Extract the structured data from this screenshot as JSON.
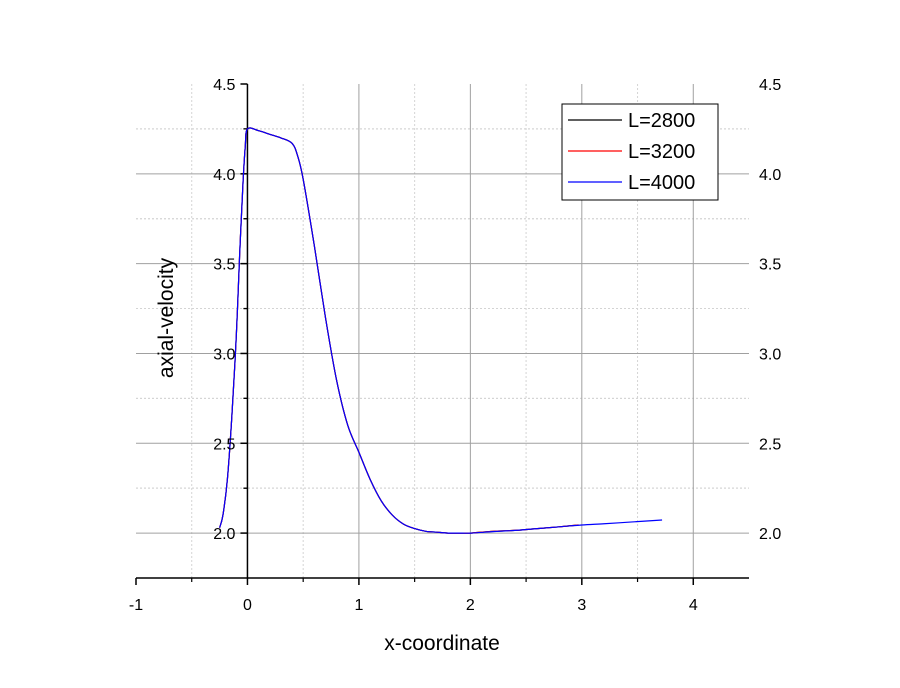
{
  "chart_data": {
    "type": "line",
    "title": "",
    "xlabel": "x-coordinate",
    "ylabel": "axial-velocity",
    "xlim": [
      -1,
      4.5
    ],
    "ylim": [
      1.75,
      4.5
    ],
    "x_ticks": [
      -1,
      0,
      1,
      2,
      3,
      4
    ],
    "x_tick_labels": [
      "-1",
      "0",
      "1",
      "2",
      "3",
      "4"
    ],
    "y_ticks": [
      2.0,
      2.5,
      3.0,
      3.5,
      4.0,
      4.5
    ],
    "y_tick_labels": [
      "2.0",
      "2.5",
      "3.0",
      "3.5",
      "4.0",
      "4.5"
    ],
    "grid": true,
    "legend_position": "top-right",
    "series": [
      {
        "name": "L=2800",
        "color": "#000000",
        "x": [
          -0.25,
          -0.22,
          -0.18,
          -0.14,
          -0.1,
          -0.07,
          -0.04,
          -0.02,
          0,
          0.1,
          0.2,
          0.3,
          0.4,
          0.45,
          0.5,
          0.6,
          0.7,
          0.8,
          0.9,
          1.0,
          1.1,
          1.2,
          1.3,
          1.4,
          1.5,
          1.6,
          1.7,
          1.8,
          1.9,
          2.0,
          2.2,
          2.4,
          2.6,
          2.8,
          2.97
        ],
        "y": [
          2.03,
          2.1,
          2.3,
          2.65,
          3.1,
          3.55,
          3.95,
          4.15,
          4.25,
          4.24,
          4.22,
          4.2,
          4.17,
          4.1,
          3.97,
          3.6,
          3.2,
          2.85,
          2.6,
          2.45,
          2.3,
          2.18,
          2.1,
          2.05,
          2.025,
          2.01,
          2.005,
          2.0,
          2.0,
          2.0,
          2.01,
          2.015,
          2.025,
          2.035,
          2.045
        ]
      },
      {
        "name": "L=3200",
        "color": "#ff0000",
        "x": [
          -0.25,
          -0.22,
          -0.18,
          -0.14,
          -0.1,
          -0.07,
          -0.04,
          -0.02,
          0,
          0.1,
          0.2,
          0.3,
          0.4,
          0.45,
          0.5,
          0.6,
          0.7,
          0.8,
          0.9,
          1.0,
          1.1,
          1.2,
          1.3,
          1.4,
          1.5,
          1.6,
          1.7,
          1.8,
          1.9,
          2.0,
          2.2,
          2.4,
          2.6,
          2.8,
          2.97
        ],
        "y": [
          2.03,
          2.1,
          2.3,
          2.65,
          3.1,
          3.55,
          3.95,
          4.15,
          4.25,
          4.24,
          4.22,
          4.2,
          4.17,
          4.1,
          3.97,
          3.6,
          3.2,
          2.85,
          2.6,
          2.45,
          2.3,
          2.18,
          2.1,
          2.05,
          2.025,
          2.01,
          2.005,
          2.0,
          2.0,
          2.0,
          2.01,
          2.015,
          2.025,
          2.035,
          2.045
        ]
      },
      {
        "name": "L=4000",
        "color": "#0000ff",
        "x": [
          -0.25,
          -0.22,
          -0.18,
          -0.14,
          -0.1,
          -0.07,
          -0.04,
          -0.02,
          0,
          0.1,
          0.2,
          0.3,
          0.4,
          0.45,
          0.5,
          0.6,
          0.7,
          0.8,
          0.9,
          1.0,
          1.1,
          1.2,
          1.3,
          1.4,
          1.5,
          1.6,
          1.7,
          1.8,
          1.9,
          2.0,
          2.2,
          2.4,
          2.6,
          2.8,
          3.0,
          3.2,
          3.4,
          3.6,
          3.72
        ],
        "y": [
          2.03,
          2.1,
          2.3,
          2.65,
          3.1,
          3.55,
          3.95,
          4.15,
          4.25,
          4.24,
          4.22,
          4.2,
          4.17,
          4.1,
          3.97,
          3.6,
          3.2,
          2.85,
          2.6,
          2.45,
          2.3,
          2.18,
          2.1,
          2.05,
          2.025,
          2.01,
          2.005,
          2.0,
          2.0,
          2.0,
          2.008,
          2.015,
          2.025,
          2.035,
          2.045,
          2.052,
          2.06,
          2.068,
          2.073
        ]
      }
    ]
  }
}
